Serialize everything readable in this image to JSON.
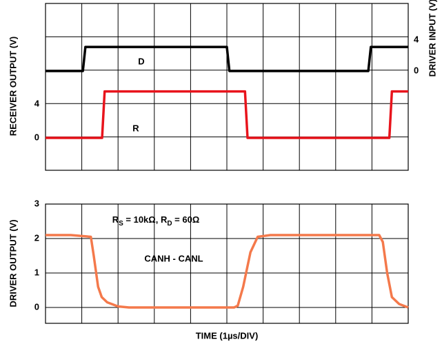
{
  "chart_data": [
    {
      "type": "line",
      "ylabel": "RECEIVER OUTPUT (V)",
      "y2label": "DRIVER INPUT (V)",
      "xlim": [
        0,
        10
      ],
      "ylim": [
        -3.84,
        15.92
      ],
      "yticks": [
        0,
        4
      ],
      "y2lim": [
        -12.8,
        8.71
      ],
      "y2ticks": [
        0,
        4
      ],
      "grid": {
        "x_divisions": 10,
        "y_divisions": 5
      },
      "annotations": [
        "D",
        "R"
      ],
      "series": [
        {
          "name": "D",
          "color": "#000000",
          "axis": "y2",
          "x": [
            0,
            1.03,
            1.1,
            5.0,
            5.07,
            8.9,
            8.97,
            10
          ],
          "values": [
            0,
            0,
            3.1,
            3.1,
            0,
            0,
            3.1,
            3.1
          ]
        },
        {
          "name": "R",
          "color": "#e8141c",
          "axis": "y",
          "x": [
            0,
            1.56,
            1.63,
            5.5,
            5.57,
            9.48,
            9.55,
            10
          ],
          "values": [
            0,
            0,
            5.5,
            5.5,
            0,
            0,
            5.5,
            5.5
          ]
        }
      ]
    },
    {
      "type": "line",
      "ylabel": "DRIVER OUTPUT (V)",
      "xlabel": "TIME (1µs/DIV)",
      "xlim": [
        0,
        10
      ],
      "ylim": [
        -0.46,
        3
      ],
      "yticks": [
        0,
        1,
        2,
        3
      ],
      "grid": {
        "x_divisions": 10
      },
      "annotation_parts": [
        {
          "text": "R"
        },
        {
          "text": "S",
          "sub": true
        },
        {
          "text": " = 10kΩ, "
        },
        {
          "text": "R"
        },
        {
          "text": "D",
          "sub": true
        },
        {
          "text": " = 60Ω"
        }
      ],
      "annotations": [
        "CANH - CANL"
      ],
      "series": [
        {
          "name": "CANH - CANL",
          "color": "#f4794b",
          "x": [
            0,
            0.7,
            1.25,
            1.33,
            1.45,
            1.55,
            1.7,
            2.0,
            2.3,
            5.2,
            5.3,
            5.45,
            5.65,
            5.85,
            6.2,
            9.2,
            9.3,
            9.42,
            9.55,
            9.75,
            10
          ],
          "values": [
            2.1,
            2.1,
            2.05,
            1.5,
            0.6,
            0.3,
            0.15,
            0.03,
            0,
            0,
            0.05,
            0.6,
            1.6,
            2.05,
            2.1,
            2.1,
            1.9,
            1.0,
            0.3,
            0.1,
            0
          ]
        }
      ]
    }
  ]
}
